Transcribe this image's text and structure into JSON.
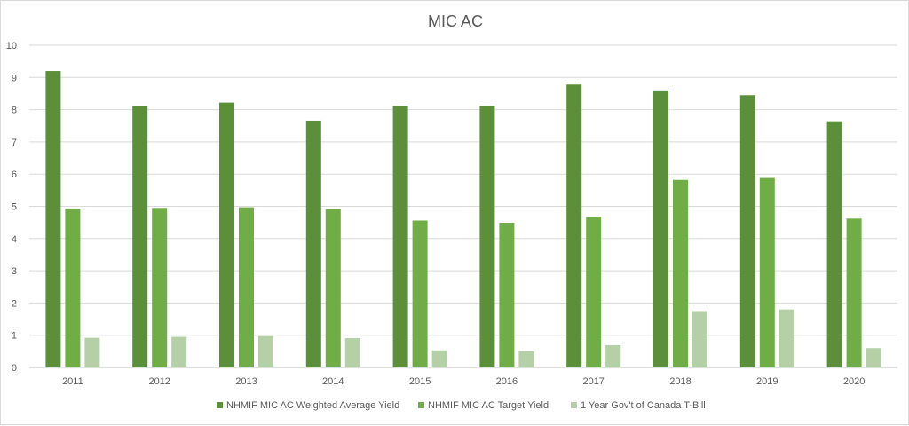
{
  "chart_data": {
    "type": "bar",
    "title": "MIC AC",
    "categories": [
      "2011",
      "2012",
      "2013",
      "2014",
      "2015",
      "2016",
      "2017",
      "2018",
      "2019",
      "2020"
    ],
    "series": [
      {
        "name": "NHMIF MIC AC Weighted Average Yield",
        "color": "#5b8f3a",
        "values": [
          9.2,
          8.1,
          8.22,
          7.66,
          8.11,
          8.11,
          8.78,
          8.6,
          8.45,
          7.64
        ]
      },
      {
        "name": "NHMIF MIC AC Target Yield",
        "color": "#70ad47",
        "values": [
          4.93,
          4.95,
          4.97,
          4.91,
          4.56,
          4.49,
          4.68,
          5.82,
          5.88,
          4.62
        ]
      },
      {
        "name": "1 Year Gov't of Canada T-Bill",
        "color": "#b5cfa6",
        "values": [
          0.92,
          0.95,
          0.97,
          0.91,
          0.53,
          0.5,
          0.69,
          1.75,
          1.8,
          0.6
        ]
      }
    ],
    "ylim": [
      0,
      10
    ],
    "yticks": [
      "0",
      "1",
      "2",
      "3",
      "4",
      "5",
      "6",
      "7",
      "8",
      "9",
      "10"
    ],
    "grid": true,
    "legend_position": "bottom"
  }
}
